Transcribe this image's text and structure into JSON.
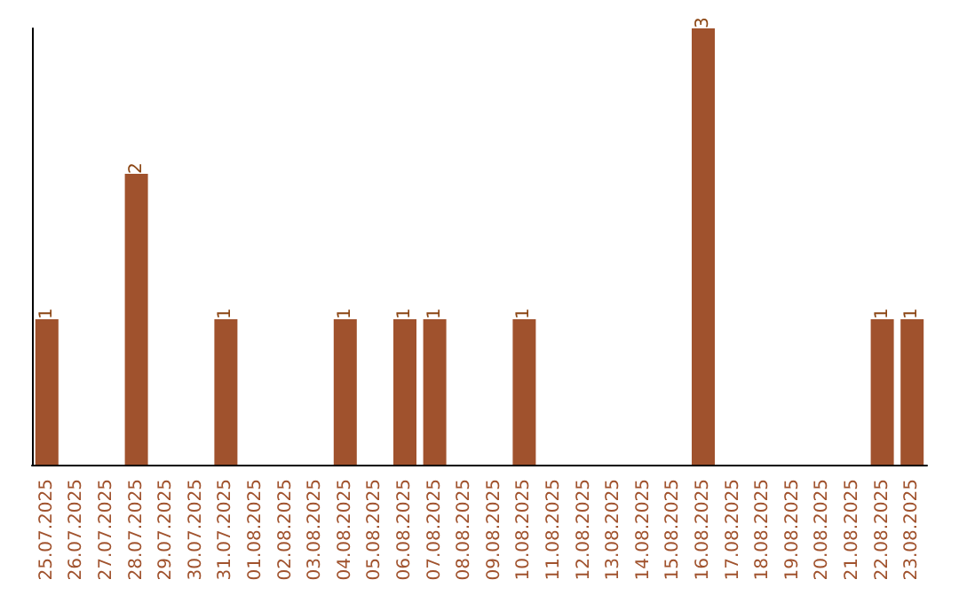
{
  "chart_data": {
    "type": "bar",
    "categories": [
      "25.07.2025",
      "26.07.2025",
      "27.07.2025",
      "28.07.2025",
      "29.07.2025",
      "30.07.2025",
      "31.07.2025",
      "01.08.2025",
      "02.08.2025",
      "03.08.2025",
      "04.08.2025",
      "05.08.2025",
      "06.08.2025",
      "07.08.2025",
      "08.08.2025",
      "09.08.2025",
      "10.08.2025",
      "11.08.2025",
      "12.08.2025",
      "13.08.2025",
      "14.08.2025",
      "15.08.2025",
      "16.08.2025",
      "17.08.2025",
      "18.08.2025",
      "19.08.2025",
      "20.08.2025",
      "21.08.2025",
      "22.08.2025",
      "23.08.2025"
    ],
    "values": [
      1,
      0,
      0,
      2,
      0,
      0,
      1,
      0,
      0,
      0,
      1,
      0,
      1,
      1,
      0,
      0,
      1,
      0,
      0,
      0,
      0,
      0,
      3,
      0,
      0,
      0,
      0,
      0,
      1,
      1
    ],
    "color": "#a0522d",
    "value_labels": [
      "1",
      null,
      null,
      "2",
      null,
      null,
      "1",
      null,
      null,
      null,
      "1",
      null,
      "1",
      "1",
      null,
      null,
      "1",
      null,
      null,
      null,
      null,
      null,
      "3",
      null,
      null,
      null,
      null,
      null,
      "1",
      "1"
    ],
    "grid": false,
    "tick_labels": "x"
  }
}
